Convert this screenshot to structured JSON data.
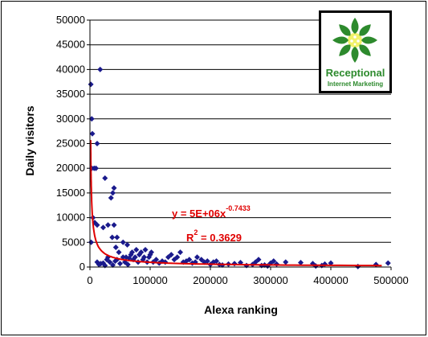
{
  "chart_data": {
    "type": "scatter",
    "xlabel": "Alexa ranking",
    "ylabel": "Daily visitors",
    "xlim": [
      0,
      500000
    ],
    "ylim": [
      0,
      50000
    ],
    "x_ticks": [
      "0",
      "100000",
      "200000",
      "300000",
      "400000",
      "500000"
    ],
    "y_ticks": [
      "0",
      "5000",
      "10000",
      "15000",
      "20000",
      "25000",
      "30000",
      "35000",
      "40000",
      "45000",
      "50000"
    ],
    "grid": "horizontal",
    "marker_color": "#1a1a8c",
    "trend_color": "#e00000",
    "trendline": {
      "type": "power",
      "coefficient": 5000000,
      "exponent": -0.7433,
      "equation_base": "y = 5E+06x",
      "equation_exp": "-0.7433",
      "r2_base": "R",
      "r2_sup": "2",
      "r2_value": " = 0.3629"
    },
    "points": [
      [
        1500,
        37000
      ],
      [
        3000,
        30000
      ],
      [
        4000,
        27000
      ],
      [
        3000,
        20000
      ],
      [
        7000,
        20000
      ],
      [
        10000,
        20000
      ],
      [
        12000,
        25000
      ],
      [
        17000,
        40000
      ],
      [
        25000,
        18000
      ],
      [
        30000,
        8500
      ],
      [
        35000,
        14000
      ],
      [
        38000,
        15000
      ],
      [
        40000,
        16000
      ],
      [
        5000,
        10000
      ],
      [
        2000,
        5000
      ],
      [
        8000,
        9000
      ],
      [
        12000,
        8500
      ],
      [
        22000,
        8000
      ],
      [
        40000,
        8500
      ],
      [
        37000,
        6000
      ],
      [
        45000,
        6000
      ],
      [
        43000,
        4000
      ],
      [
        55000,
        5000
      ],
      [
        48000,
        3000
      ],
      [
        62000,
        4500
      ],
      [
        12000,
        1000
      ],
      [
        15000,
        500
      ],
      [
        18000,
        700
      ],
      [
        22000,
        800
      ],
      [
        25000,
        300
      ],
      [
        28000,
        1500
      ],
      [
        30000,
        2000
      ],
      [
        33000,
        1000
      ],
      [
        38000,
        400
      ],
      [
        42000,
        1200
      ],
      [
        45000,
        1500
      ],
      [
        50000,
        700
      ],
      [
        55000,
        2000
      ],
      [
        58000,
        1000
      ],
      [
        60000,
        2000
      ],
      [
        63000,
        500
      ],
      [
        65000,
        1800
      ],
      [
        68000,
        2500
      ],
      [
        70000,
        3000
      ],
      [
        72000,
        1500
      ],
      [
        75000,
        2000
      ],
      [
        77000,
        3500
      ],
      [
        80000,
        1000
      ],
      [
        82000,
        2500
      ],
      [
        85000,
        3000
      ],
      [
        88000,
        1500
      ],
      [
        90000,
        2000
      ],
      [
        92000,
        3500
      ],
      [
        95000,
        1000
      ],
      [
        98000,
        2000
      ],
      [
        100000,
        2500
      ],
      [
        102000,
        3000
      ],
      [
        105000,
        1000
      ],
      [
        110000,
        1500
      ],
      [
        115000,
        800
      ],
      [
        120000,
        1200
      ],
      [
        125000,
        1000
      ],
      [
        130000,
        2000
      ],
      [
        135000,
        2500
      ],
      [
        140000,
        1500
      ],
      [
        145000,
        2000
      ],
      [
        150000,
        3000
      ],
      [
        155000,
        1000
      ],
      [
        160000,
        1200
      ],
      [
        165000,
        1500
      ],
      [
        170000,
        800
      ],
      [
        175000,
        1000
      ],
      [
        178000,
        2000
      ],
      [
        185000,
        1500
      ],
      [
        190000,
        1000
      ],
      [
        195000,
        1200
      ],
      [
        200000,
        500
      ],
      [
        205000,
        1000
      ],
      [
        210000,
        1200
      ],
      [
        215000,
        500
      ],
      [
        220000,
        400
      ],
      [
        230000,
        600
      ],
      [
        240000,
        700
      ],
      [
        250000,
        900
      ],
      [
        260000,
        300
      ],
      [
        270000,
        500
      ],
      [
        275000,
        1000
      ],
      [
        280000,
        1500
      ],
      [
        285000,
        300
      ],
      [
        290000,
        400
      ],
      [
        295000,
        200
      ],
      [
        300000,
        800
      ],
      [
        305000,
        1200
      ],
      [
        310000,
        600
      ],
      [
        325000,
        1000
      ],
      [
        350000,
        900
      ],
      [
        370000,
        700
      ],
      [
        375000,
        200
      ],
      [
        385000,
        300
      ],
      [
        390000,
        600
      ],
      [
        400000,
        800
      ],
      [
        445000,
        100
      ],
      [
        475000,
        500
      ],
      [
        495000,
        800
      ]
    ]
  },
  "logo": {
    "line1": "Receptional",
    "line2": "Internet Marketing"
  }
}
